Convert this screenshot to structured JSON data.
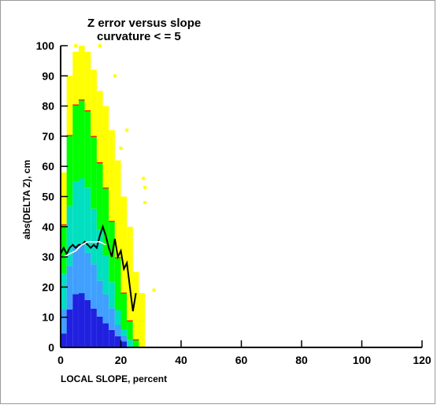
{
  "chart_data": {
    "type": "heatmap",
    "title": "Z error versus slope",
    "subtitle": "curvature < = 5",
    "xlabel": "LOCAL SLOPE, percent",
    "ylabel": "abs(DELTA Z), cm",
    "xlim": [
      0,
      120
    ],
    "ylim": [
      0,
      100
    ],
    "x_ticks": [
      "0",
      "20",
      "40",
      "60",
      "80",
      "100",
      "120"
    ],
    "y_ticks": [
      "0",
      "10",
      "20",
      "30",
      "40",
      "50",
      "60",
      "70",
      "80",
      "90",
      "100"
    ],
    "grid": false,
    "colors": {
      "density_low": "#ffff00",
      "density_2": "#00ff00",
      "density_3": "#00e0c0",
      "density_4": "#40a0ff",
      "density_5": "#2020e0",
      "density_6": "#9020ff",
      "density_high": "#e000e0",
      "contour": "#ff0000",
      "mean_line": "#000000",
      "median_line": "#ffffff"
    },
    "density_columns": [
      {
        "x": [
          0,
          2
        ],
        "y_top": 58,
        "levels": [
          8,
          22,
          42,
          70,
          100
        ]
      },
      {
        "x": [
          2,
          4
        ],
        "y_top": 90,
        "levels": [
          14,
          30,
          52,
          78,
          100
        ]
      },
      {
        "x": [
          4,
          6
        ],
        "y_top": 98,
        "levels": [
          18,
          34,
          56,
          82,
          100
        ]
      },
      {
        "x": [
          6,
          8
        ],
        "y_top": 100,
        "levels": [
          18,
          34,
          56,
          82,
          100
        ]
      },
      {
        "x": [
          8,
          10
        ],
        "y_top": 98,
        "levels": [
          16,
          32,
          54,
          80,
          100
        ]
      },
      {
        "x": [
          10,
          12
        ],
        "y_top": 92,
        "levels": [
          14,
          30,
          50,
          76,
          100
        ]
      },
      {
        "x": [
          12,
          14
        ],
        "y_top": 85,
        "levels": [
          12,
          26,
          46,
          72,
          100
        ]
      },
      {
        "x": [
          14,
          16
        ],
        "y_top": 80,
        "levels": [
          10,
          22,
          38,
          66,
          100
        ]
      },
      {
        "x": [
          16,
          18
        ],
        "y_top": 72,
        "levels": [
          8,
          18,
          30,
          58,
          100
        ]
      },
      {
        "x": [
          18,
          20
        ],
        "y_top": 62,
        "levels": [
          6,
          12,
          20,
          48,
          100
        ]
      },
      {
        "x": [
          20,
          22
        ],
        "y_top": 50,
        "levels": [
          4,
          8,
          12,
          36,
          100
        ]
      },
      {
        "x": [
          22,
          24
        ],
        "y_top": 40,
        "levels": [
          0,
          0,
          6,
          22,
          100
        ]
      },
      {
        "x": [
          24,
          26
        ],
        "y_top": 25,
        "levels": [
          0,
          0,
          0,
          10,
          100
        ]
      },
      {
        "x": [
          26,
          28
        ],
        "y_top": 18,
        "levels": [
          0,
          0,
          0,
          0,
          100
        ]
      }
    ],
    "outliers": [
      {
        "x": 27.5,
        "y": 56
      },
      {
        "x": 28,
        "y": 48
      },
      {
        "x": 28,
        "y": 53
      },
      {
        "x": 31,
        "y": 19
      },
      {
        "x": 18,
        "y": 90
      },
      {
        "x": 20,
        "y": 66
      },
      {
        "x": 22,
        "y": 72
      },
      {
        "x": 5,
        "y": 100
      },
      {
        "x": 13,
        "y": 100
      },
      {
        "x": 24,
        "y": 19
      },
      {
        "x": 19,
        "y": 31
      }
    ],
    "series": [
      {
        "x": [
          0,
          1,
          2,
          3,
          4,
          5,
          6,
          7,
          8,
          9,
          10,
          11,
          12,
          13,
          14,
          15,
          16,
          17,
          18,
          19,
          20,
          21,
          22,
          23,
          24,
          25
        ],
        "y": [
          31,
          33,
          31,
          33,
          34,
          33,
          34,
          34,
          35,
          34,
          33,
          34,
          33,
          37,
          40,
          37,
          33,
          30,
          36,
          30,
          32,
          26,
          28,
          20,
          12,
          18
        ]
      },
      {
        "x": [
          1,
          3,
          5,
          7,
          9,
          11,
          13,
          15
        ],
        "y": [
          30,
          31,
          32,
          34,
          35,
          35,
          35,
          34
        ]
      }
    ]
  }
}
